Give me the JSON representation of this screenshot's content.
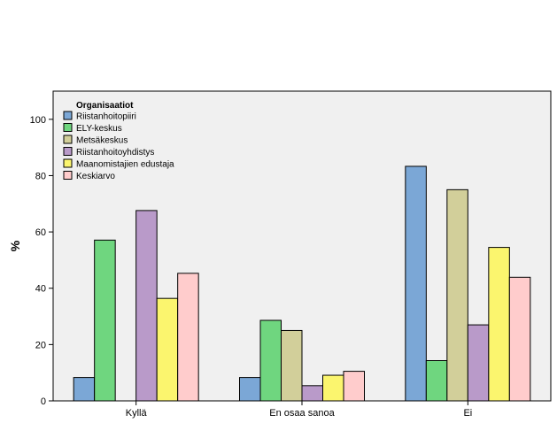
{
  "chart_data": {
    "type": "bar",
    "ylabel": "%",
    "ylim": [
      0,
      110
    ],
    "yticks": [
      0,
      20,
      40,
      60,
      80,
      100
    ],
    "grid": false,
    "legend_position": "top-left",
    "legend_title": "Organisaatiot",
    "categories": [
      "Kyllä",
      "En osaa sanoa",
      "Ei"
    ],
    "series": [
      {
        "name": "Riistanhoitopiiri",
        "color": "#7ba7d6",
        "values": [
          8.3,
          8.3,
          83.3
        ]
      },
      {
        "name": "ELY-keskus",
        "color": "#6fd67f",
        "values": [
          57.1,
          28.6,
          14.3
        ]
      },
      {
        "name": "Metsäkeskus",
        "color": "#d2cf9a",
        "values": [
          0,
          25.0,
          75.0
        ]
      },
      {
        "name": "Riistanhoitoyhdistys",
        "color": "#b99ac9",
        "values": [
          67.6,
          5.4,
          27.0
        ]
      },
      {
        "name": "Maanomistajien edustaja",
        "color": "#fbf56e",
        "values": [
          36.4,
          9.1,
          54.5
        ]
      },
      {
        "name": "Keskiarvo",
        "color": "#ffcccc",
        "values": [
          45.3,
          10.5,
          43.9
        ]
      }
    ]
  }
}
